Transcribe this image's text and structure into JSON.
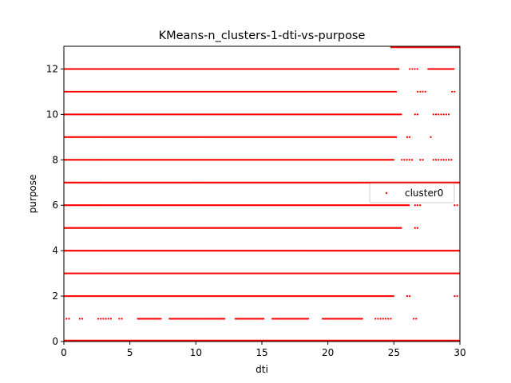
{
  "chart_data": {
    "type": "scatter",
    "title": "KMeans-n_clusters-1-dti-vs-purpose",
    "xlabel": "dti",
    "ylabel": "purpose",
    "xlim": [
      0,
      30
    ],
    "ylim": [
      0,
      13
    ],
    "x_ticks": [
      0,
      5,
      10,
      15,
      20,
      25,
      30
    ],
    "y_ticks": [
      0,
      2,
      4,
      6,
      8,
      10,
      12
    ],
    "grid": false,
    "legend_position": "center-right",
    "series": [
      {
        "name": "cluster0",
        "color": "#ff0000",
        "rows": [
          {
            "y": 0,
            "segments": [
              [
                0,
                30
              ]
            ]
          },
          {
            "y": 1,
            "segments": [
              [
                0.2,
                0.4
              ],
              [
                1.2,
                1.5
              ],
              [
                2.6,
                3.6
              ],
              [
                4.2,
                4.4
              ],
              [
                5.6,
                7.4
              ],
              [
                8.0,
                12.2
              ],
              [
                13.0,
                15.2
              ],
              [
                15.8,
                18.6
              ],
              [
                19.6,
                22.6
              ],
              [
                23.6,
                24.8
              ],
              [
                26.5,
                26.8
              ]
            ]
          },
          {
            "y": 2,
            "segments": [
              [
                0,
                25
              ],
              [
                26.0,
                26.2
              ],
              [
                29.6,
                29.8
              ]
            ]
          },
          {
            "y": 3,
            "segments": [
              [
                0,
                30
              ]
            ]
          },
          {
            "y": 4,
            "segments": [
              [
                0,
                30
              ]
            ]
          },
          {
            "y": 5,
            "segments": [
              [
                0,
                25.6
              ],
              [
                26.6,
                26.8
              ]
            ]
          },
          {
            "y": 6,
            "segments": [
              [
                0,
                26.2
              ],
              [
                26.6,
                27.0
              ],
              [
                29.6,
                29.8
              ]
            ]
          },
          {
            "y": 7,
            "segments": [
              [
                0,
                30
              ]
            ]
          },
          {
            "y": 8,
            "segments": [
              [
                0,
                25
              ],
              [
                25.6,
                26.4
              ],
              [
                27.0,
                27.2
              ],
              [
                28.0,
                29.4
              ]
            ]
          },
          {
            "y": 9,
            "segments": [
              [
                0,
                25.2
              ],
              [
                26.0,
                26.2
              ],
              [
                27.8,
                27.9
              ]
            ]
          },
          {
            "y": 10,
            "segments": [
              [
                0,
                25.6
              ],
              [
                26.6,
                26.8
              ],
              [
                28.0,
                29.2
              ]
            ]
          },
          {
            "y": 11,
            "segments": [
              [
                0,
                25.2
              ],
              [
                26.8,
                27.4
              ],
              [
                29.4,
                29.6
              ]
            ]
          },
          {
            "y": 12,
            "segments": [
              [
                0,
                25.4
              ],
              [
                26.2,
                26.8
              ],
              [
                27.6,
                29.6
              ]
            ]
          },
          {
            "y": 13,
            "segments": [
              [
                24.8,
                30
              ]
            ]
          }
        ]
      }
    ]
  }
}
